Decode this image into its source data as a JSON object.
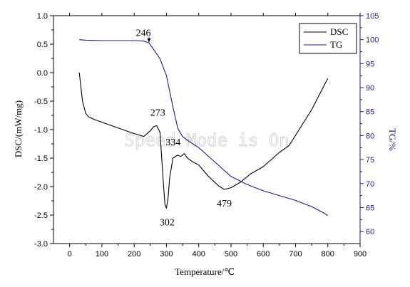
{
  "watermark": "Speed Mode is On",
  "chart_data": {
    "type": "line",
    "xlabel": "Temperature/℃",
    "ylabel_left": "DSC/(mW/mg)",
    "ylabel_right": "TG/%",
    "xlim": [
      -50,
      900
    ],
    "ylim_left": [
      -3.0,
      1.0
    ],
    "ylim_right": [
      57.5,
      105
    ],
    "x_ticks": [
      0,
      100,
      200,
      300,
      400,
      500,
      600,
      700,
      800,
      900
    ],
    "y_ticks_left": [
      1.0,
      0.5,
      0.0,
      -0.5,
      -1.0,
      -1.5,
      -2.0,
      -2.5,
      -3.0
    ],
    "y_ticks_right": [
      105,
      100,
      95,
      90,
      85,
      80,
      75,
      70,
      65,
      60
    ],
    "grid": false,
    "legend_position": "top-right",
    "colors": {
      "DSC": "#000000",
      "TG": "#1a1a8c",
      "right_axis": "#1a1a8c",
      "left_axis": "#000000"
    },
    "series": [
      {
        "name": "DSC",
        "axis": "left",
        "x": [
          30,
          40,
          50,
          60,
          80,
          100,
          150,
          200,
          230,
          250,
          260,
          270,
          280,
          290,
          295,
          300,
          305,
          310,
          320,
          334,
          345,
          355,
          365,
          380,
          400,
          430,
          460,
          479,
          500,
          530,
          560,
          600,
          650,
          680,
          700,
          750,
          800
        ],
        "y": [
          0.0,
          -0.5,
          -0.72,
          -0.78,
          -0.83,
          -0.87,
          -0.97,
          -1.07,
          -1.12,
          -1.02,
          -0.95,
          -0.93,
          -1.05,
          -1.9,
          -2.3,
          -2.38,
          -2.2,
          -1.85,
          -1.5,
          -1.45,
          -1.47,
          -1.42,
          -1.5,
          -1.56,
          -1.62,
          -1.82,
          -1.98,
          -2.05,
          -2.02,
          -1.92,
          -1.78,
          -1.65,
          -1.4,
          -1.28,
          -1.1,
          -0.65,
          -0.1
        ]
      },
      {
        "name": "TG",
        "axis": "right",
        "x": [
          30,
          50,
          100,
          150,
          200,
          230,
          246,
          260,
          280,
          300,
          320,
          335,
          350,
          370,
          400,
          450,
          500,
          550,
          600,
          650,
          700,
          750,
          790,
          800
        ],
        "y": [
          100.0,
          99.9,
          99.8,
          99.8,
          99.8,
          99.7,
          99.3,
          98.0,
          96.0,
          92.5,
          86.0,
          81.5,
          79.8,
          78.8,
          77.5,
          74.5,
          71.5,
          69.8,
          68.5,
          67.5,
          66.5,
          65.2,
          63.8,
          63.3
        ]
      }
    ],
    "annotations": [
      {
        "text": "246",
        "x": 246,
        "y_right": 99.3,
        "arrow": true
      },
      {
        "text": "273",
        "x": 273,
        "y": -0.93
      },
      {
        "text": "302",
        "x": 302,
        "y": -2.38
      },
      {
        "text": "334",
        "x": 334,
        "y": -1.45
      },
      {
        "text": "479",
        "x": 479,
        "y": -2.05
      }
    ]
  }
}
